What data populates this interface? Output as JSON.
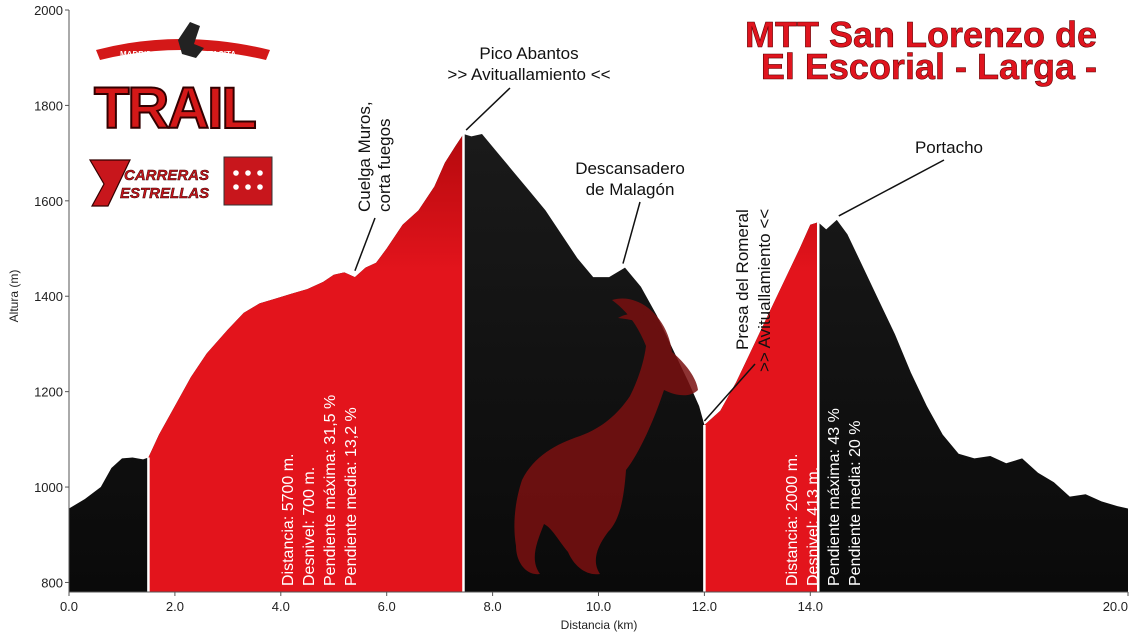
{
  "chart_data": {
    "type": "area",
    "title_line1": "MTT San Lorenzo de",
    "title_line2": "El Escorial - Larga -",
    "xlabel": "Distancia   (km)",
    "ylabel": "Altura (m)",
    "xlim": [
      0,
      20
    ],
    "ylim": [
      780,
      2000
    ],
    "x_ticks": [
      "0.0",
      "2.0",
      "4.0",
      "6.0",
      "8.0",
      "10.0",
      "12.0",
      "14.0",
      "20.0"
    ],
    "y_ticks": [
      "2000",
      "1800",
      "1600",
      "1400",
      "1200",
      "1000",
      "800"
    ],
    "grid": false,
    "profile": {
      "x": [
        0,
        0.3,
        0.6,
        0.8,
        1.0,
        1.2,
        1.4,
        1.5,
        1.7,
        2.0,
        2.3,
        2.6,
        3.0,
        3.3,
        3.6,
        3.9,
        4.2,
        4.5,
        4.8,
        5.0,
        5.2,
        5.4,
        5.6,
        5.8,
        6.0,
        6.3,
        6.6,
        6.9,
        7.1,
        7.3,
        7.45,
        7.6,
        7.8,
        8.1,
        8.4,
        8.7,
        9.0,
        9.3,
        9.6,
        9.9,
        10.2,
        10.5,
        10.8,
        11.1,
        11.4,
        11.7,
        11.9,
        12.0,
        12.3,
        12.6,
        12.9,
        13.2,
        13.5,
        13.8,
        14.0,
        14.15,
        14.3,
        14.5,
        14.7,
        15.0,
        15.3,
        15.6,
        15.9,
        16.2,
        16.5,
        16.8,
        17.1,
        17.4,
        17.7,
        18.0,
        18.3,
        18.6,
        18.9,
        19.2,
        19.5,
        19.8,
        20.0
      ],
      "y": [
        955,
        975,
        1000,
        1040,
        1060,
        1062,
        1058,
        1062,
        1110,
        1170,
        1230,
        1280,
        1330,
        1365,
        1385,
        1395,
        1405,
        1415,
        1430,
        1445,
        1450,
        1440,
        1460,
        1470,
        1500,
        1550,
        1580,
        1630,
        1680,
        1715,
        1740,
        1735,
        1740,
        1700,
        1660,
        1620,
        1580,
        1530,
        1480,
        1440,
        1440,
        1460,
        1420,
        1360,
        1290,
        1220,
        1170,
        1130,
        1160,
        1220,
        1290,
        1360,
        1430,
        1500,
        1550,
        1555,
        1540,
        1560,
        1530,
        1460,
        1390,
        1320,
        1240,
        1170,
        1110,
        1070,
        1060,
        1065,
        1050,
        1060,
        1030,
        1010,
        980,
        985,
        970,
        960,
        955
      ]
    },
    "climbs": [
      {
        "start": 1.5,
        "end": 7.45,
        "stats": [
          "Distancia: 5700 m.",
          "Desnivel: 700 m.",
          "Pendiente máxima: 31,5 %",
          "Pendiente media: 13,2 %"
        ]
      },
      {
        "start": 12.0,
        "end": 14.15,
        "stats": [
          "Distancia: 2000 m.",
          "Desnivel: 413 m.",
          "Pendiente máxima: 43 %",
          "Pendiente media: 20 %"
        ]
      }
    ],
    "annotations": [
      {
        "id": "cuelga",
        "lines": [
          "Cuelga Muros,",
          "corta fuegos"
        ],
        "x": 5.4,
        "y": 1445
      },
      {
        "id": "abantos",
        "lines": [
          "Pico Abantos",
          ">> Avituallamiento <<"
        ],
        "x": 7.5,
        "y": 1740
      },
      {
        "id": "malagon",
        "lines": [
          "Descansadero",
          "de Malagón"
        ],
        "x": 10.5,
        "y": 1460
      },
      {
        "id": "romeral",
        "lines": [
          "Presa del Romeral",
          ">> Avituallamiento <<"
        ],
        "x": 12.0,
        "y": 1130
      },
      {
        "id": "portacho",
        "lines": [
          "Portacho"
        ],
        "x": 14.5,
        "y": 1560
      }
    ],
    "colors": {
      "climb": "#e3141c",
      "profile": "#121212",
      "divider": "#ffffff",
      "title": "#e0141e"
    }
  },
  "logo": {
    "brand": "TRAIL",
    "top_left": "MADRID",
    "top_right": "TACITA",
    "series_line1": "CARRERAS",
    "series_line2": "ESTRELLAS"
  }
}
